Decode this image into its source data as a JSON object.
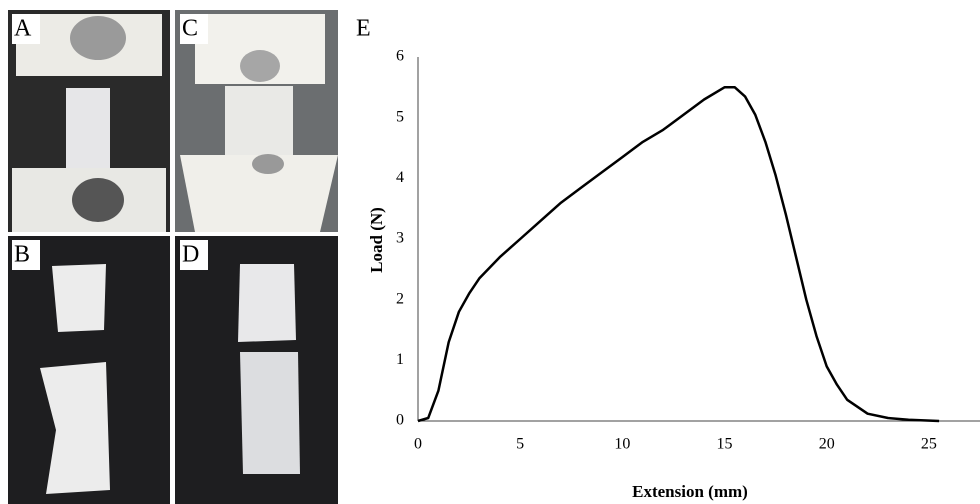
{
  "panel_labels": [
    "A",
    "B",
    "C",
    "D",
    "E"
  ],
  "chart_data": {
    "type": "line",
    "x_label": "Extension (mm)",
    "y_label": "Load (N)",
    "x": [
      0,
      0.5,
      1,
      1.5,
      2,
      2.5,
      3,
      4,
      5,
      6,
      7,
      8,
      9,
      10,
      11,
      12,
      13,
      14,
      15,
      15.5,
      16,
      16.5,
      17,
      17.5,
      18,
      18.5,
      19,
      19.5,
      20,
      20.5,
      21,
      22,
      23,
      24,
      25.5
    ],
    "values": [
      0,
      0.05,
      0.5,
      1.3,
      1.8,
      2.1,
      2.35,
      2.7,
      3.0,
      3.3,
      3.6,
      3.85,
      4.1,
      4.35,
      4.6,
      4.8,
      5.05,
      5.3,
      5.5,
      5.5,
      5.35,
      5.05,
      4.6,
      4.05,
      3.4,
      2.7,
      2.0,
      1.4,
      0.9,
      0.6,
      0.35,
      0.12,
      0.05,
      0.02,
      0.0
    ],
    "color": "#000000",
    "xlim": [
      0,
      27.5
    ],
    "ylim": [
      0,
      6
    ],
    "xticks": [
      0,
      5,
      10,
      15,
      20,
      25
    ],
    "yticks": [
      0,
      1,
      2,
      3,
      4,
      5,
      6
    ],
    "grid": false
  }
}
